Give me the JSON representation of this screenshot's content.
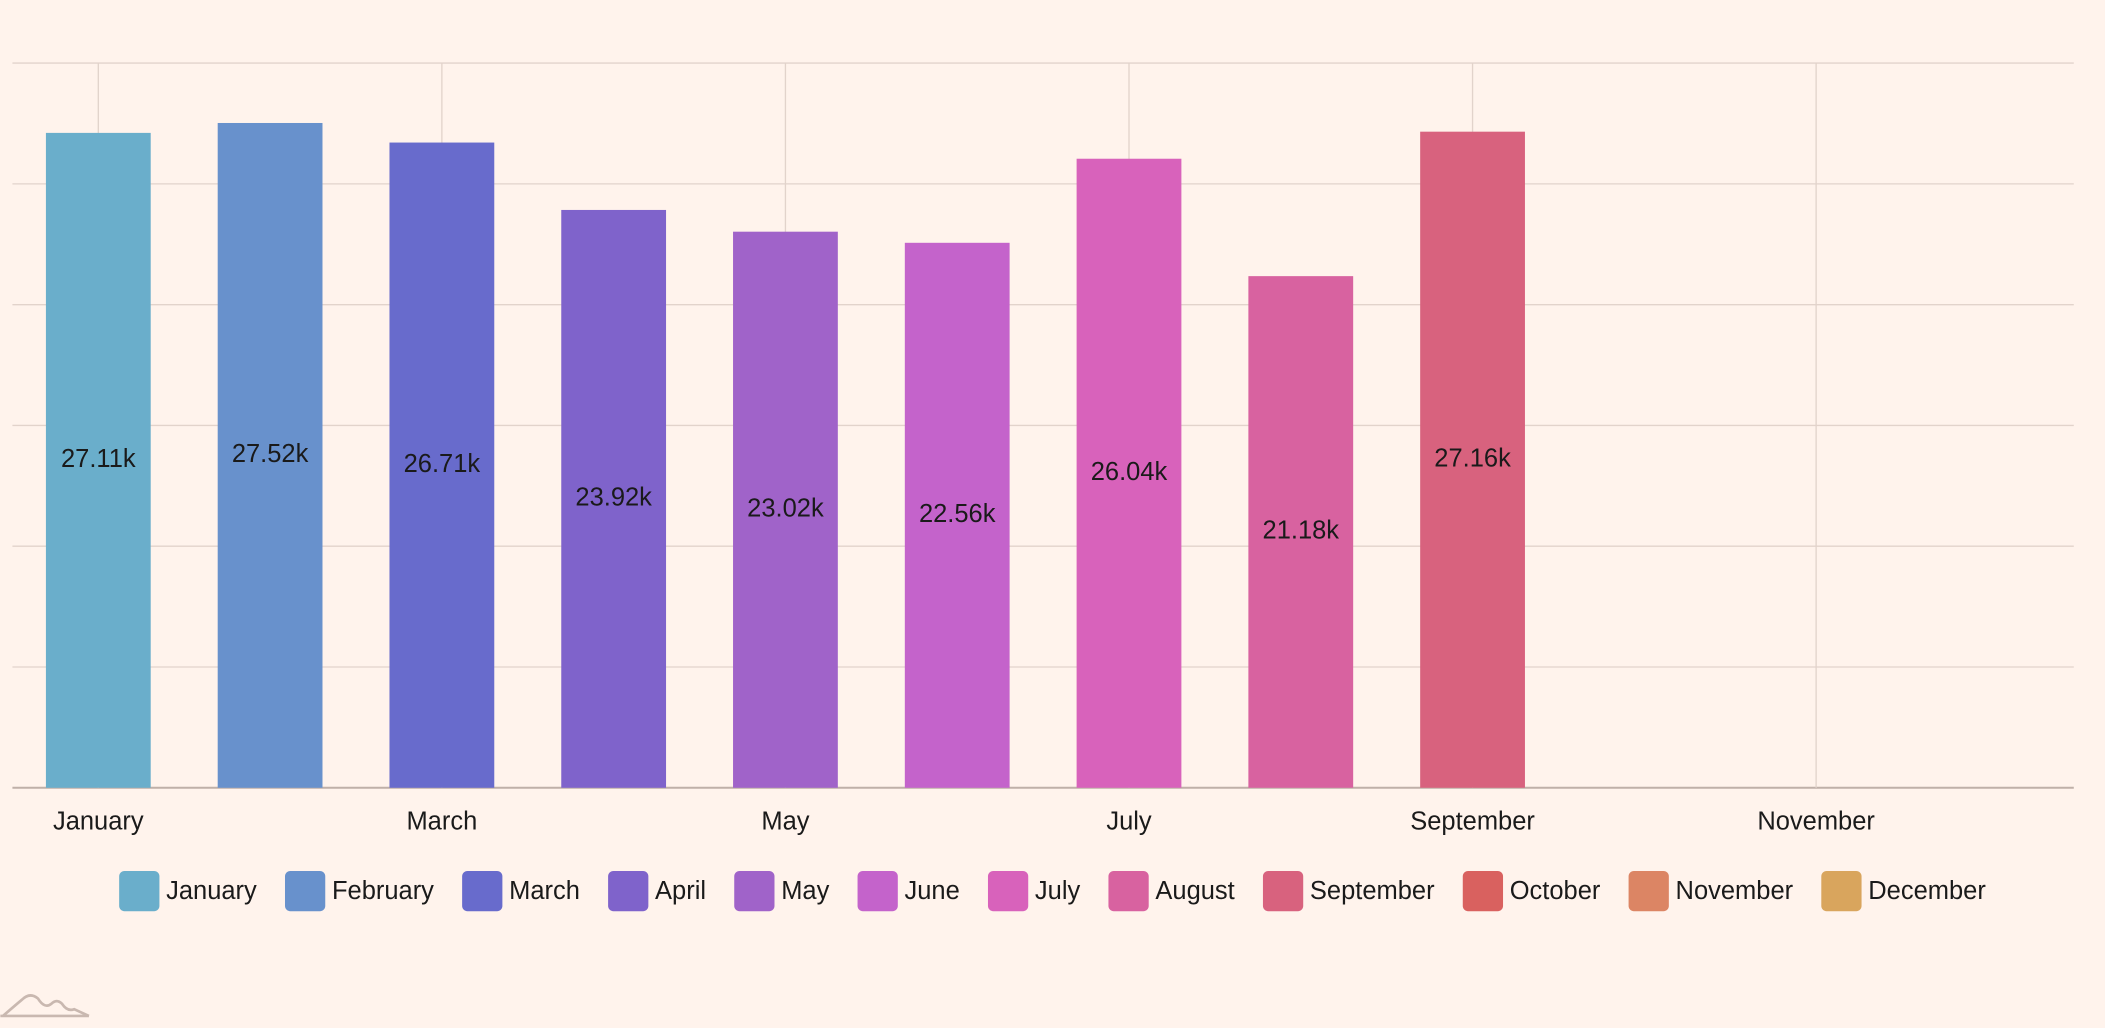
{
  "chart_data": {
    "type": "bar",
    "categories": [
      "January",
      "February",
      "March",
      "April",
      "May",
      "June",
      "July",
      "August",
      "September",
      "October",
      "November",
      "December"
    ],
    "values": [
      27110,
      27520,
      26710,
      23920,
      23020,
      22560,
      26040,
      21180,
      27160,
      null,
      null,
      null
    ],
    "value_labels": [
      "27.11k",
      "27.52k",
      "26.71k",
      "23.92k",
      "23.02k",
      "22.56k",
      "26.04k",
      "21.18k",
      "27.16k",
      null,
      null,
      null
    ],
    "colors": [
      "#6aaecb",
      "#6891cc",
      "#686bcc",
      "#7f63cb",
      "#a063c9",
      "#c463cb",
      "#d862bb",
      "#d862a0",
      "#d8627e",
      "#d9615f",
      "#dc8564",
      "#d9a55d"
    ],
    "ylim": [
      0,
      30000
    ],
    "yticks": [
      0,
      5000,
      10000,
      15000,
      20000,
      25000,
      30000
    ],
    "grid": true
  }
}
